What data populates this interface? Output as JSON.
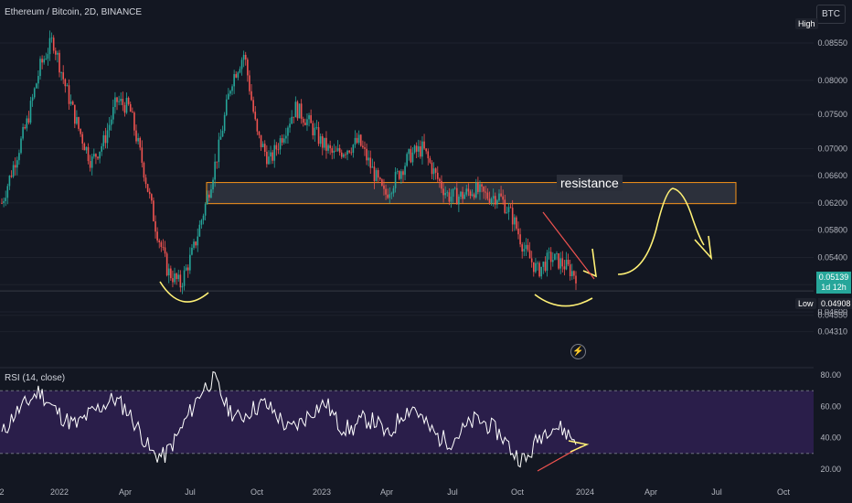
{
  "header": {
    "title": "Ethereum / Bitcoin, 2D, BINANCE",
    "currency_badge": "BTC",
    "high_label": "High",
    "low_label": "Low",
    "low_value": "0.04908",
    "last_price": "0.05139",
    "countdown": "1d 12h"
  },
  "annotation": {
    "resistance_label": "resistance"
  },
  "rsi": {
    "title": "RSI (14, close)"
  },
  "colors": {
    "background": "#131722",
    "up": "#26a69a",
    "down": "#ef5350",
    "resistance_border": "#f7931a",
    "drawing": "#fff176",
    "rsi_band": "#2a1e4a"
  },
  "chart_data": [
    {
      "type": "candlestick",
      "title": "Ethereum / Bitcoin, 2D, BINANCE",
      "y_ticks": [
        "0.08550",
        "0.08000",
        "0.07500",
        "0.07000",
        "0.06600",
        "0.06200",
        "0.05800",
        "0.05400",
        "0.05000",
        "0.04600",
        "0.04550",
        "0.04310"
      ],
      "y_tick_values": [
        0.0855,
        0.08,
        0.075,
        0.07,
        0.066,
        0.062,
        0.058,
        0.054,
        0.05,
        0.046,
        0.0455,
        0.0431
      ],
      "x_ticks": [
        "2",
        "2022",
        "Apr",
        "Jul",
        "Oct",
        "2023",
        "Apr",
        "Jul",
        "Oct",
        "2024",
        "Apr",
        "Jul",
        "Oct"
      ],
      "approx_path": [
        0.062,
        0.068,
        0.074,
        0.082,
        0.086,
        0.079,
        0.073,
        0.068,
        0.071,
        0.077,
        0.076,
        0.068,
        0.059,
        0.052,
        0.05,
        0.055,
        0.062,
        0.07,
        0.08,
        0.084,
        0.072,
        0.068,
        0.072,
        0.076,
        0.074,
        0.071,
        0.069,
        0.07,
        0.071,
        0.067,
        0.063,
        0.066,
        0.069,
        0.07,
        0.066,
        0.063,
        0.063,
        0.064,
        0.063,
        0.063,
        0.06,
        0.055,
        0.052,
        0.054,
        0.053,
        0.0514
      ],
      "resistance_zone": [
        0.0619,
        0.065
      ],
      "high": 0.0885,
      "low": 0.04908,
      "last": 0.05139
    },
    {
      "type": "line",
      "title": "RSI (14, close)",
      "y_ticks": [
        "80.00",
        "60.00",
        "40.00",
        "20.00"
      ],
      "y_tick_values": [
        80,
        60,
        40,
        20
      ],
      "bands": [
        70,
        30
      ],
      "approx_values": [
        42,
        55,
        62,
        70,
        60,
        52,
        48,
        55,
        60,
        65,
        58,
        45,
        30,
        28,
        40,
        55,
        70,
        78,
        60,
        52,
        58,
        62,
        55,
        45,
        50,
        58,
        62,
        48,
        45,
        52,
        50,
        40,
        55,
        60,
        48,
        40,
        38,
        45,
        52,
        48,
        42,
        30,
        25,
        40,
        48,
        45,
        38
      ]
    }
  ]
}
